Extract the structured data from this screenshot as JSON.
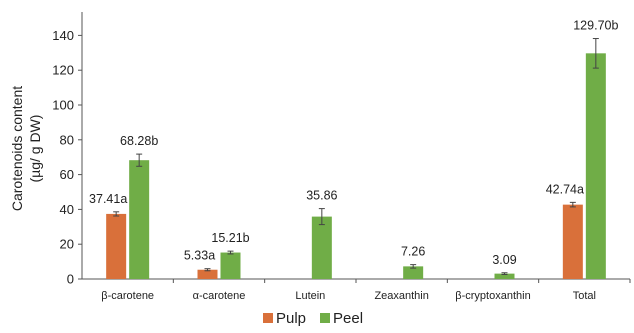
{
  "chart_data": {
    "type": "bar",
    "title": "",
    "xlabel": "",
    "ylabel_lines": [
      "Carotenoids content",
      "(µg/ g DW)"
    ],
    "ylim": [
      0,
      150
    ],
    "yticks": [
      0,
      20,
      40,
      60,
      80,
      100,
      120,
      140
    ],
    "categories": [
      "β-carotene",
      "α-carotene",
      "Lutein",
      "Zeaxanthin",
      "β-cryptoxanthin",
      "Total"
    ],
    "series": [
      {
        "name": "Pulp",
        "color": "#d9703a",
        "values": [
          37.41,
          5.33,
          null,
          null,
          null,
          42.74
        ],
        "errors": [
          1.2,
          0.6,
          null,
          null,
          null,
          1.3
        ],
        "labels": [
          "37.41a",
          "5.33a",
          "",
          "",
          "",
          "42.74a"
        ]
      },
      {
        "name": "Peel",
        "color": "#70ad47",
        "values": [
          68.28,
          15.21,
          35.86,
          7.26,
          3.09,
          129.7
        ],
        "errors": [
          3.5,
          0.8,
          4.6,
          1.0,
          0.5,
          8.5
        ],
        "labels": [
          "68.28b",
          "15.21b",
          "35.86",
          "7.26",
          "3.09",
          "129.70b"
        ]
      }
    ],
    "grid": false,
    "legend_position": "bottom"
  }
}
